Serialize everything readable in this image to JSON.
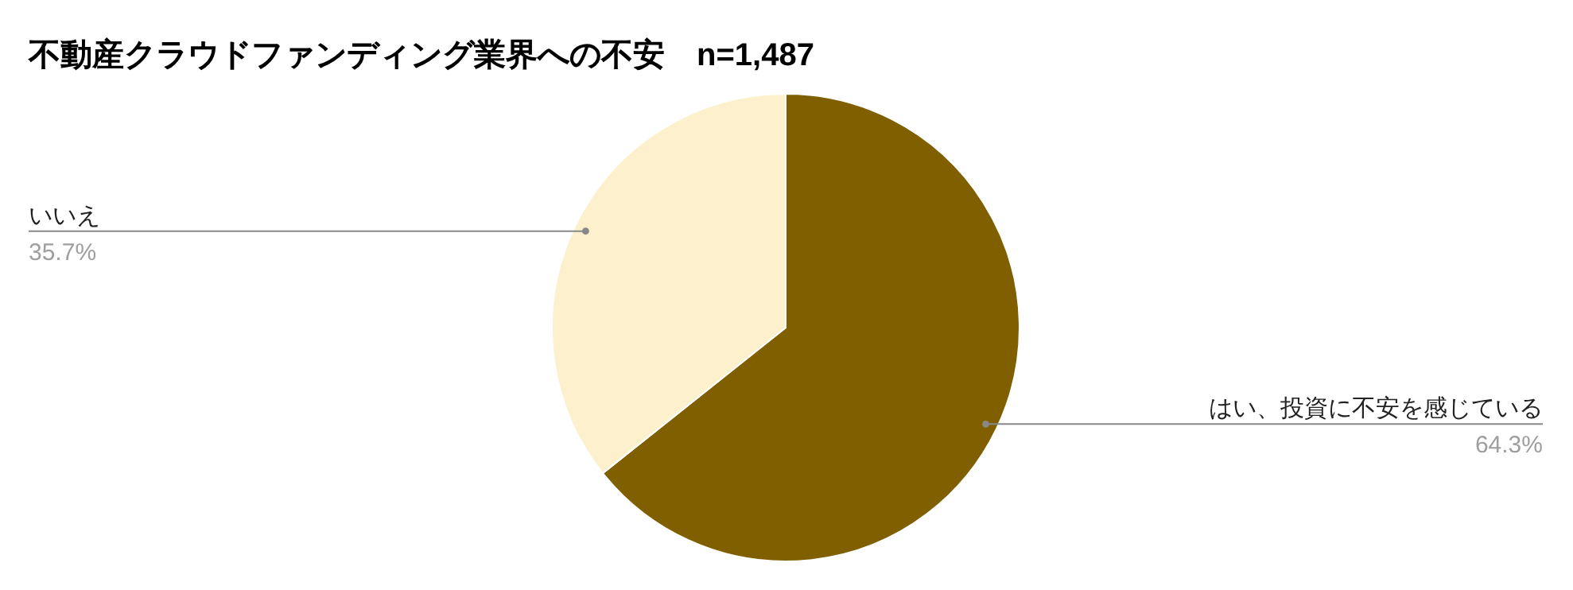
{
  "chart_data": {
    "type": "pie",
    "title": "不動産クラウドファンディング業界への不安　n=1,487",
    "categories": [
      "はい、投資に不安を感じている",
      "いいえ"
    ],
    "values": [
      64.3,
      35.7
    ],
    "colors": [
      "#7f5f00",
      "#fdf0cc"
    ],
    "value_labels": [
      "64.3%",
      "35.7%"
    ]
  }
}
